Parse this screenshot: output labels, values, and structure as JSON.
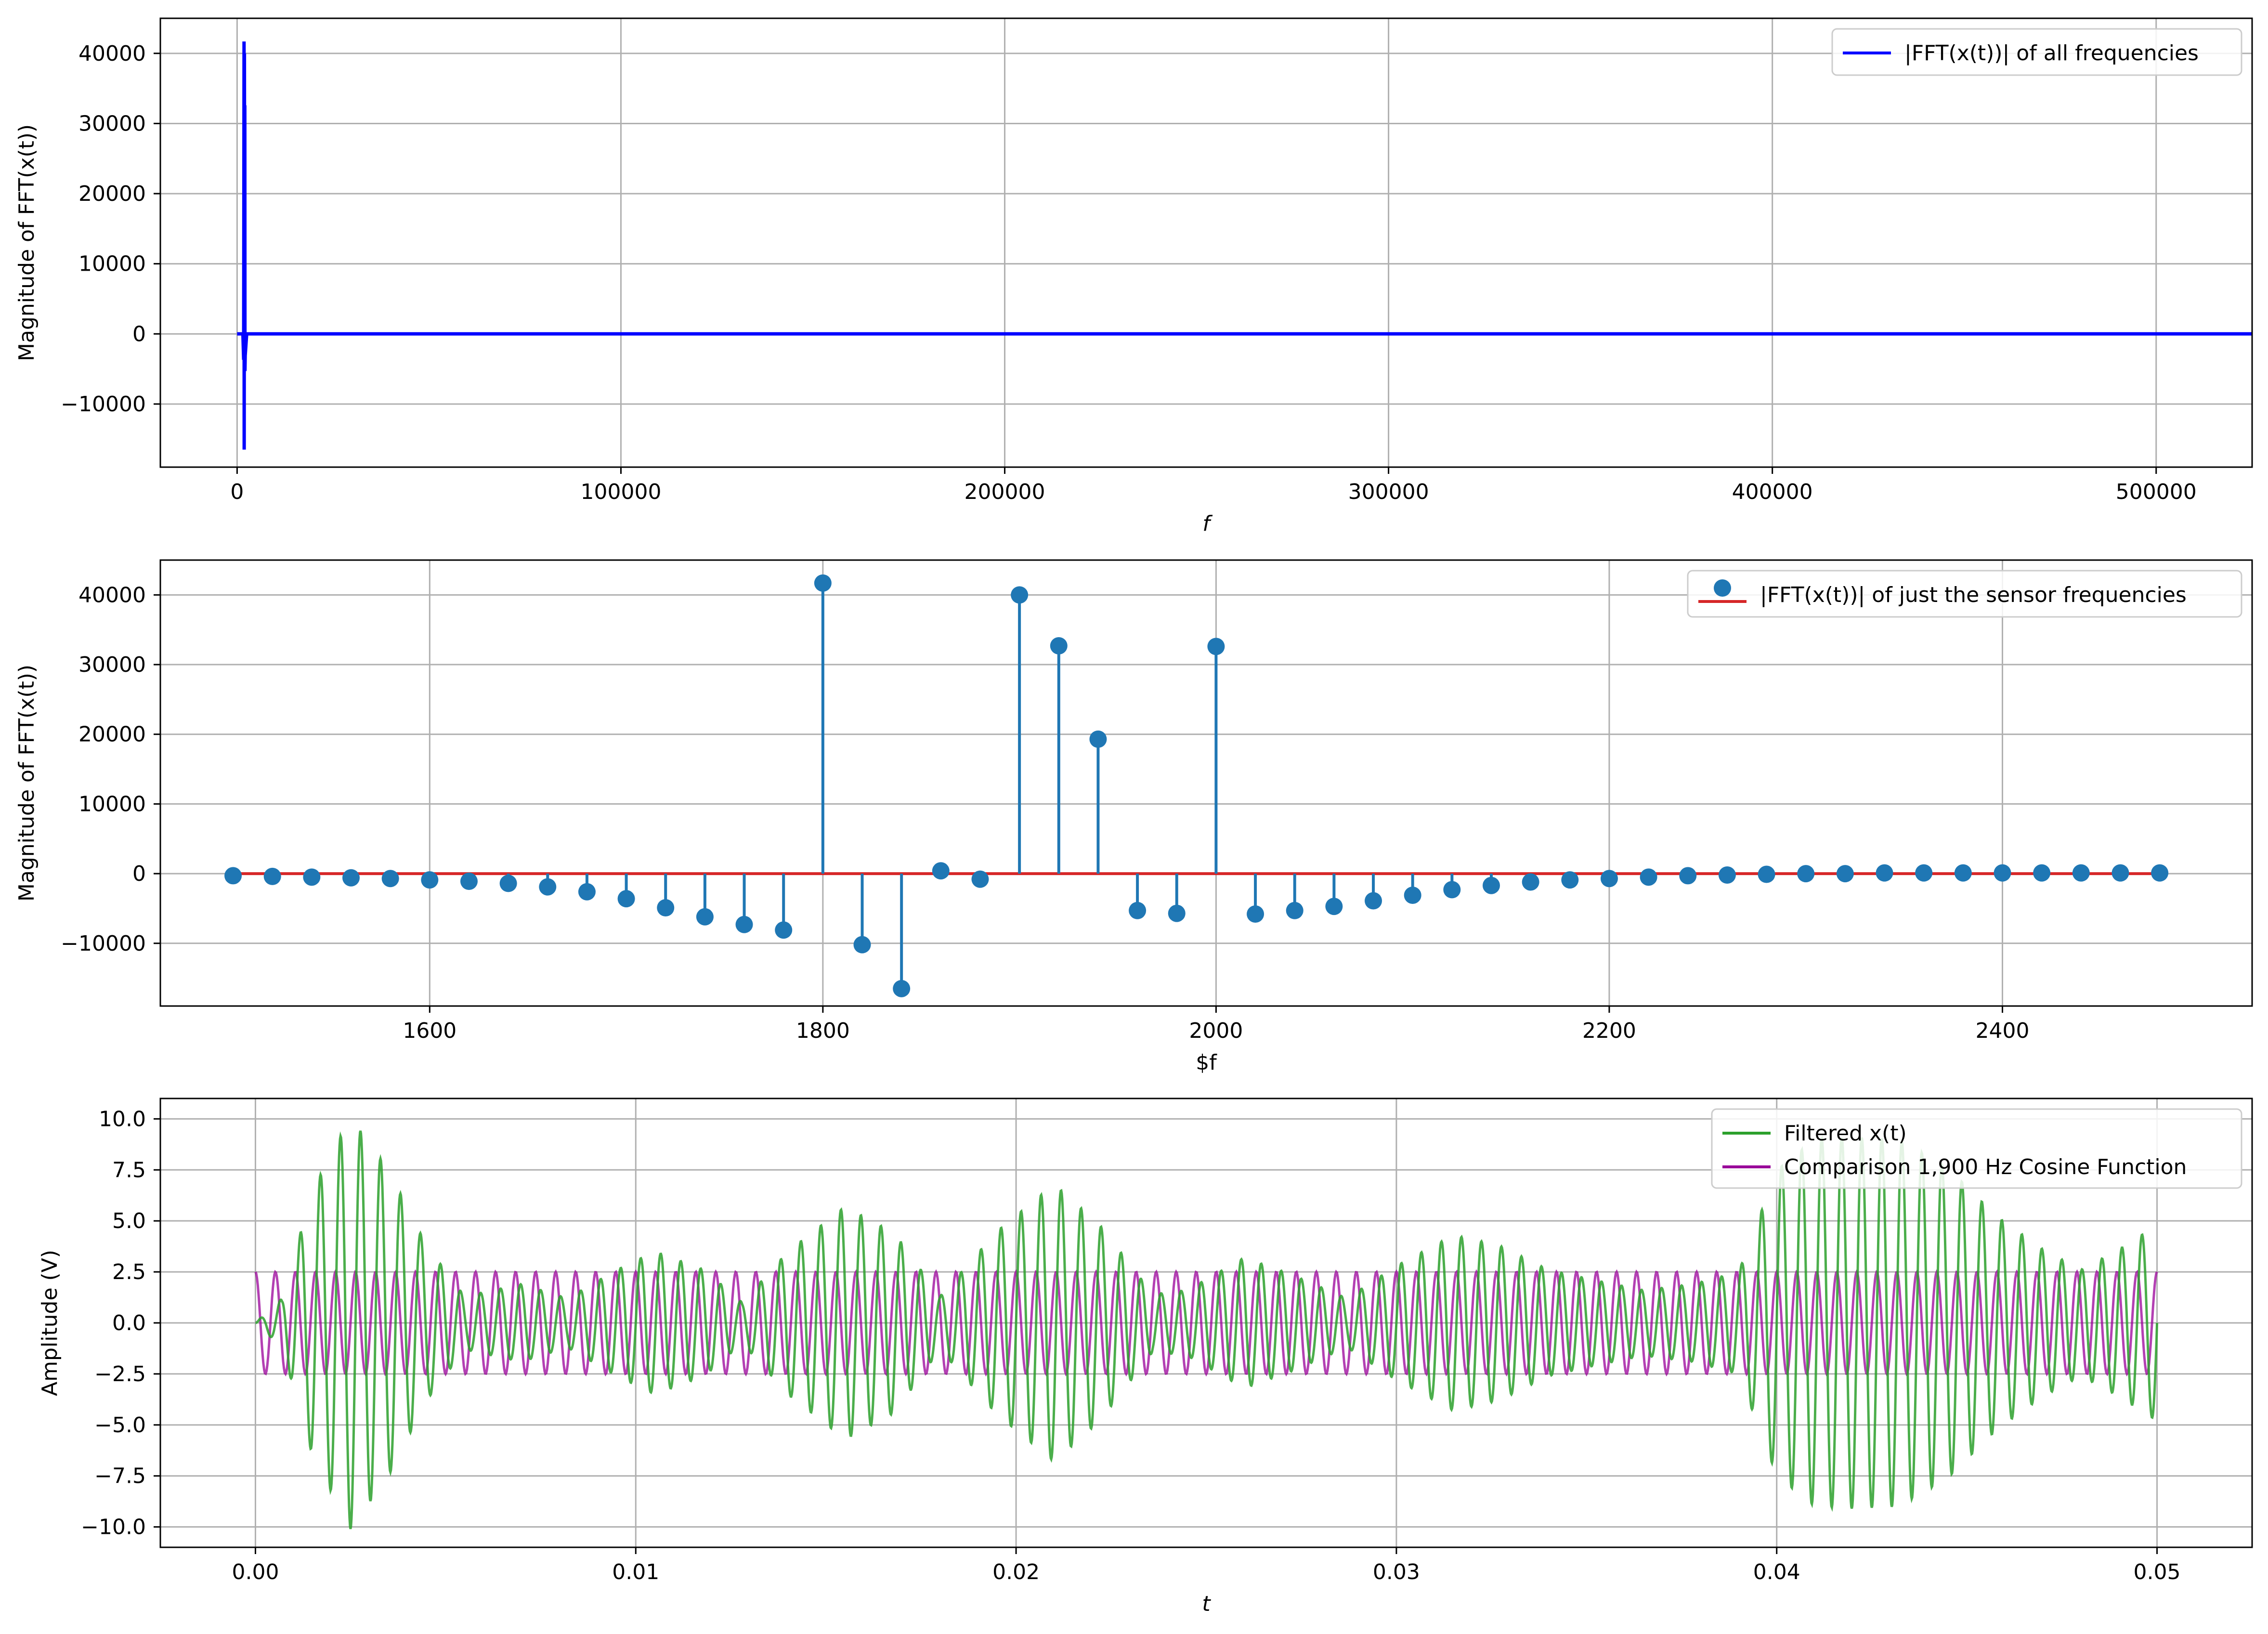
{
  "colors": {
    "fft_all": "#0000ff",
    "stem": "#1f77b4",
    "baseline": "#d62728",
    "filtered": "#2ca02c",
    "cosine": "#990099",
    "grid": "#b0b0b0"
  },
  "chart_data": [
    {
      "type": "line",
      "ylabel": "Magnitude of FFT(x(t))",
      "xlabel": "f",
      "xlim": [
        -20000,
        525000
      ],
      "ylim": [
        -19000,
        45000
      ],
      "xticks": [
        0,
        100000,
        200000,
        300000,
        400000,
        500000
      ],
      "yticks": [
        -10000,
        0,
        10000,
        20000,
        30000,
        40000
      ],
      "xtick_labels": [
        "0",
        "100000",
        "200000",
        "300000",
        "400000",
        "500000"
      ],
      "ytick_labels": [
        "−10000",
        "0",
        "10000",
        "20000",
        "30000",
        "40000"
      ],
      "grid": true,
      "legend": {
        "position": "top-right",
        "entries": [
          {
            "label": "|FFT(x(t))| of all frequencies",
            "color": "#0000ff"
          }
        ]
      },
      "series": [
        {
          "name": "|FFT(x(t))| of all frequencies",
          "x": [
            0,
            1500,
            1700,
            1800,
            1840,
            1900,
            1920,
            1960,
            2000,
            2040,
            2100,
            2500,
            525000
          ],
          "y": [
            0,
            0,
            -3700,
            41700,
            -16500,
            40000,
            32500,
            -5300,
            32600,
            -5300,
            -3100,
            0,
            0
          ]
        }
      ]
    },
    {
      "type": "stem",
      "ylabel": "Magnitude of FFT(x(t))",
      "xlabel": "$f",
      "xlim": [
        1463,
        2527
      ],
      "ylim": [
        -19000,
        45000
      ],
      "xticks": [
        1600,
        1800,
        2000,
        2200,
        2400
      ],
      "yticks": [
        -10000,
        0,
        10000,
        20000,
        30000,
        40000
      ],
      "xtick_labels": [
        "1600",
        "1800",
        "2000",
        "2200",
        "2400"
      ],
      "ytick_labels": [
        "−10000",
        "0",
        "10000",
        "20000",
        "30000",
        "40000"
      ],
      "grid": true,
      "legend": {
        "position": "top-right",
        "entries": [
          {
            "label": "|FFT(x(t))| of just the sensor frequencies",
            "color": "#1f77b4"
          }
        ]
      },
      "series": [
        {
          "name": "|FFT(x(t))| of just the sensor frequencies",
          "x": [
            1500,
            1520,
            1540,
            1560,
            1580,
            1600,
            1620,
            1640,
            1660,
            1680,
            1700,
            1720,
            1740,
            1760,
            1780,
            1800,
            1820,
            1840,
            1860,
            1880,
            1900,
            1920,
            1940,
            1960,
            1980,
            2000,
            2020,
            2040,
            2060,
            2080,
            2100,
            2120,
            2140,
            2160,
            2180,
            2200,
            2220,
            2240,
            2260,
            2280,
            2300,
            2320,
            2340,
            2360,
            2380,
            2400,
            2420,
            2440,
            2460,
            2480
          ],
          "y": [
            -300,
            -400,
            -500,
            -600,
            -700,
            -900,
            -1100,
            -1400,
            -1900,
            -2600,
            -3600,
            -4900,
            -6200,
            -7300,
            -8100,
            41700,
            -10200,
            -16500,
            400,
            -800,
            40000,
            32700,
            19300,
            -5300,
            -5700,
            32600,
            -5800,
            -5300,
            -4700,
            -3900,
            -3100,
            -2300,
            -1700,
            -1200,
            -900,
            -700,
            -500,
            -300,
            -200,
            -100,
            0,
            0,
            100,
            100,
            100,
            100,
            100,
            100,
            100,
            100
          ]
        }
      ]
    },
    {
      "type": "line",
      "ylabel": "Amplitude (V)",
      "xlabel": "t",
      "xlim": [
        -0.0025,
        0.0525
      ],
      "ylim": [
        -11.0,
        11.0
      ],
      "xticks": [
        0.0,
        0.01,
        0.02,
        0.03,
        0.04,
        0.05
      ],
      "yticks": [
        -10.0,
        -7.5,
        -5.0,
        -2.5,
        0.0,
        2.5,
        5.0,
        7.5,
        10.0
      ],
      "xtick_labels": [
        "0.00",
        "0.01",
        "0.02",
        "0.03",
        "0.04",
        "0.05"
      ],
      "ytick_labels": [
        "−10.0",
        "−7.5",
        "−5.0",
        "−2.5",
        "0.0",
        "2.5",
        "5.0",
        "7.5",
        "10.0"
      ],
      "grid": true,
      "legend": {
        "position": "top-right",
        "entries": [
          {
            "label": "Filtered x(t)",
            "color": "#2ca02c"
          },
          {
            "label": "Comparison 1,900 Hz Cosine Function",
            "color": "#990099"
          }
        ]
      },
      "series": [
        {
          "name": "Filtered x(t)",
          "x": [
            0.0,
            0.0025,
            0.005,
            0.008,
            0.0105,
            0.013,
            0.0155,
            0.018,
            0.021,
            0.024,
            0.026,
            0.029,
            0.0315,
            0.034,
            0.0365,
            0.039,
            0.042,
            0.045,
            0.048,
            0.05
          ],
          "y": [
            0.0,
            10.1,
            3.5,
            1.6,
            3.5,
            1.0,
            5.7,
            1.3,
            6.8,
            1.6,
            3.2,
            1.2,
            4.3,
            2.6,
            1.6,
            2.5,
            9.0,
            7.6,
            2.6,
            4.8
          ]
        },
        {
          "name": "Comparison 1,900 Hz Cosine Function",
          "x": [
            0.0,
            0.05
          ],
          "y": [
            2.5,
            2.5
          ]
        }
      ]
    }
  ]
}
